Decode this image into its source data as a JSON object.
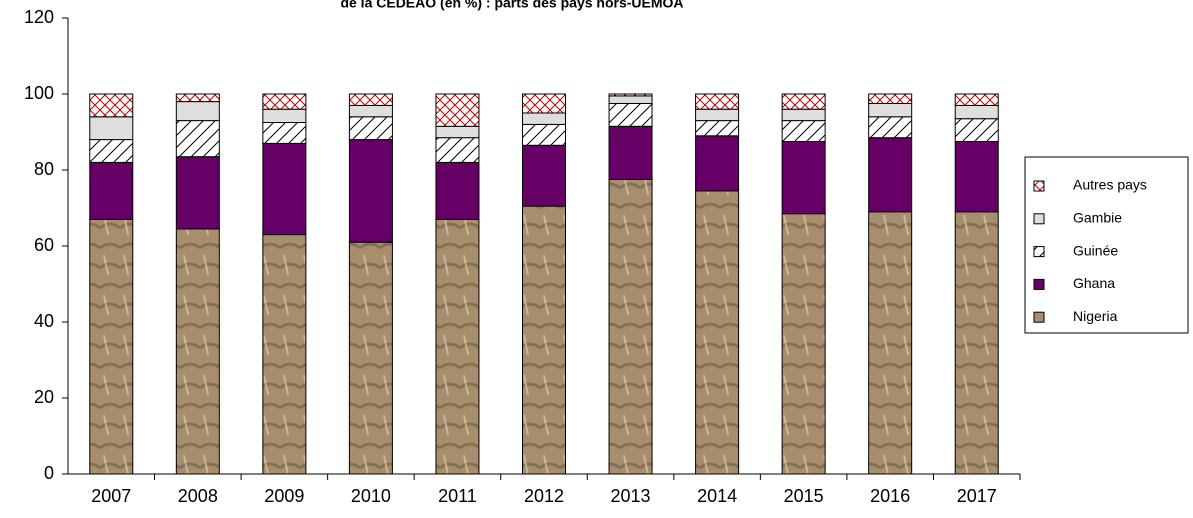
{
  "chart_data": {
    "type": "stacked_bar",
    "title": "de la CEDEAO (en %) : parts des pays hors-UEMOA",
    "categories": [
      "2007",
      "2008",
      "2009",
      "2010",
      "2011",
      "2012",
      "2013",
      "2014",
      "2015",
      "2016",
      "2017"
    ],
    "series": [
      {
        "name": "Nigeria",
        "color": "#a88e6c",
        "values": [
          67,
          64.5,
          63,
          61,
          67,
          70.5,
          77.5,
          74.5,
          68.5,
          69,
          69
        ]
      },
      {
        "name": "Ghana",
        "color": "#660066",
        "values": [
          15,
          19,
          24,
          27,
          15,
          16,
          14,
          14.5,
          19,
          19.5,
          18.5
        ]
      },
      {
        "name": "Guinée",
        "color": "#000000",
        "values": [
          6,
          9.5,
          5.5,
          6,
          6.5,
          5.5,
          6,
          4,
          5.5,
          5.5,
          6
        ]
      },
      {
        "name": "Gambie",
        "color": "#dedede",
        "values": [
          6,
          5,
          3.5,
          3,
          3,
          3,
          2,
          3,
          3,
          3.5,
          3.5
        ]
      },
      {
        "name": "Autres pays",
        "color": "#c00000",
        "values": [
          6,
          2,
          4,
          3,
          8.5,
          5,
          0.5,
          4,
          4,
          2.5,
          3
        ]
      }
    ],
    "ylim": [
      0,
      120
    ],
    "yticks": [
      0,
      20,
      40,
      60,
      80,
      100,
      120
    ],
    "legend": "right"
  }
}
